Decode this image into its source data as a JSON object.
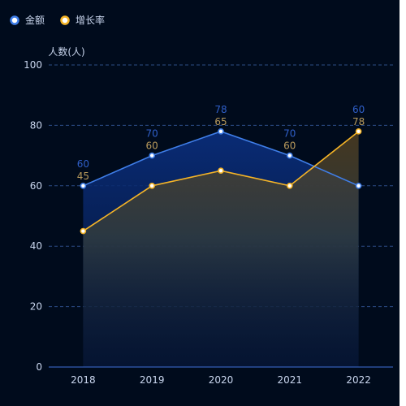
{
  "chart_data": {
    "type": "line",
    "categories": [
      "2018",
      "2019",
      "2020",
      "2021",
      "2022"
    ],
    "series": [
      {
        "name": "金额",
        "values": [
          60,
          70,
          78,
          70,
          60
        ],
        "color": "#3f7ee8",
        "label_color": "#2f5fc8"
      },
      {
        "name": "增长率",
        "values": [
          45,
          60,
          65,
          60,
          78
        ],
        "color": "#f5b427",
        "label_color": "#b89a5c"
      }
    ],
    "ylabel": "人数(人)",
    "ylim": [
      0,
      100
    ],
    "yticks": [
      0,
      20,
      40,
      60,
      80,
      100
    ],
    "grid": true,
    "legend": "top-left",
    "area_fill": true
  }
}
